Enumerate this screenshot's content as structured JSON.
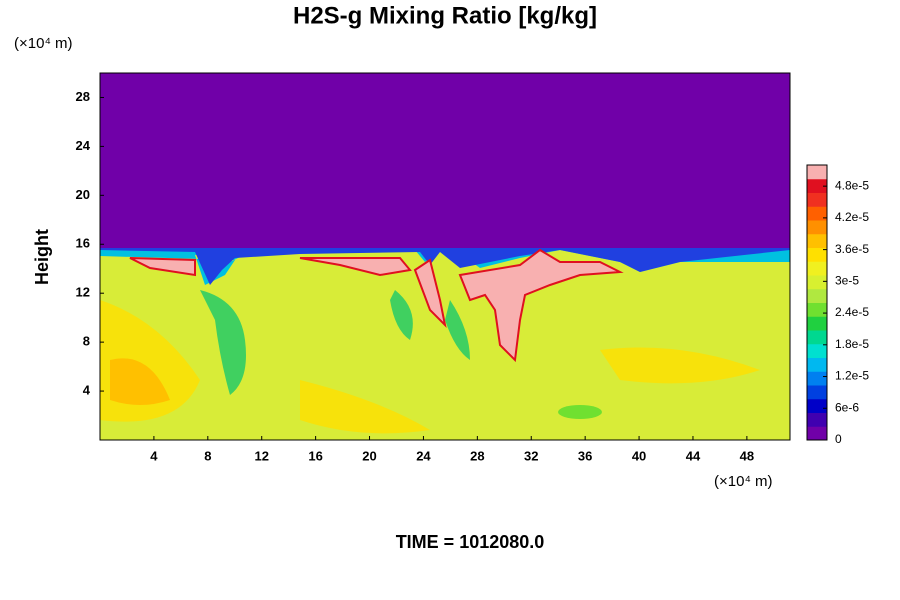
{
  "chart_data": {
    "type": "contour",
    "title": "H2S-g Mixing Ratio [kg/kg]",
    "y_label": "Height",
    "y_unit": "(×10⁴ m)",
    "x_unit": "(×10⁴ m)",
    "footer": "TIME = 1012080.0",
    "xlim": [
      0,
      51.2
    ],
    "xticks": [
      4,
      8,
      12,
      16,
      20,
      24,
      28,
      32,
      36,
      40,
      44,
      48
    ],
    "ylim": [
      0,
      30
    ],
    "yticks": [
      4,
      8,
      12,
      16,
      20,
      24,
      28
    ],
    "colorbar": {
      "lim": [
        0,
        5.2e-05
      ],
      "colors": [
        "#7000a8",
        "#4000b0",
        "#0000c8",
        "#0040e0",
        "#0080f0",
        "#00b8f0",
        "#00e0d0",
        "#00d890",
        "#20d040",
        "#70e030",
        "#b0e840",
        "#d8f030",
        "#f0f020",
        "#ffe000",
        "#ffc000",
        "#ff9000",
        "#ff6000",
        "#f03020",
        "#e01020",
        "#f8b0b0"
      ],
      "ticks": [
        {
          "value": 0,
          "label": "0"
        },
        {
          "value": 6e-06,
          "label": "6e-6"
        },
        {
          "value": 1.2e-05,
          "label": "1.2e-5"
        },
        {
          "value": 1.8e-05,
          "label": "1.8e-5"
        },
        {
          "value": 2.4e-05,
          "label": "2.4e-5"
        },
        {
          "value": 3e-05,
          "label": "3e-5"
        },
        {
          "value": 3.6e-05,
          "label": "3.6e-5"
        },
        {
          "value": 4.2e-05,
          "label": "4.2e-5"
        },
        {
          "value": 4.8e-05,
          "label": "4.8e-5"
        }
      ]
    }
  }
}
